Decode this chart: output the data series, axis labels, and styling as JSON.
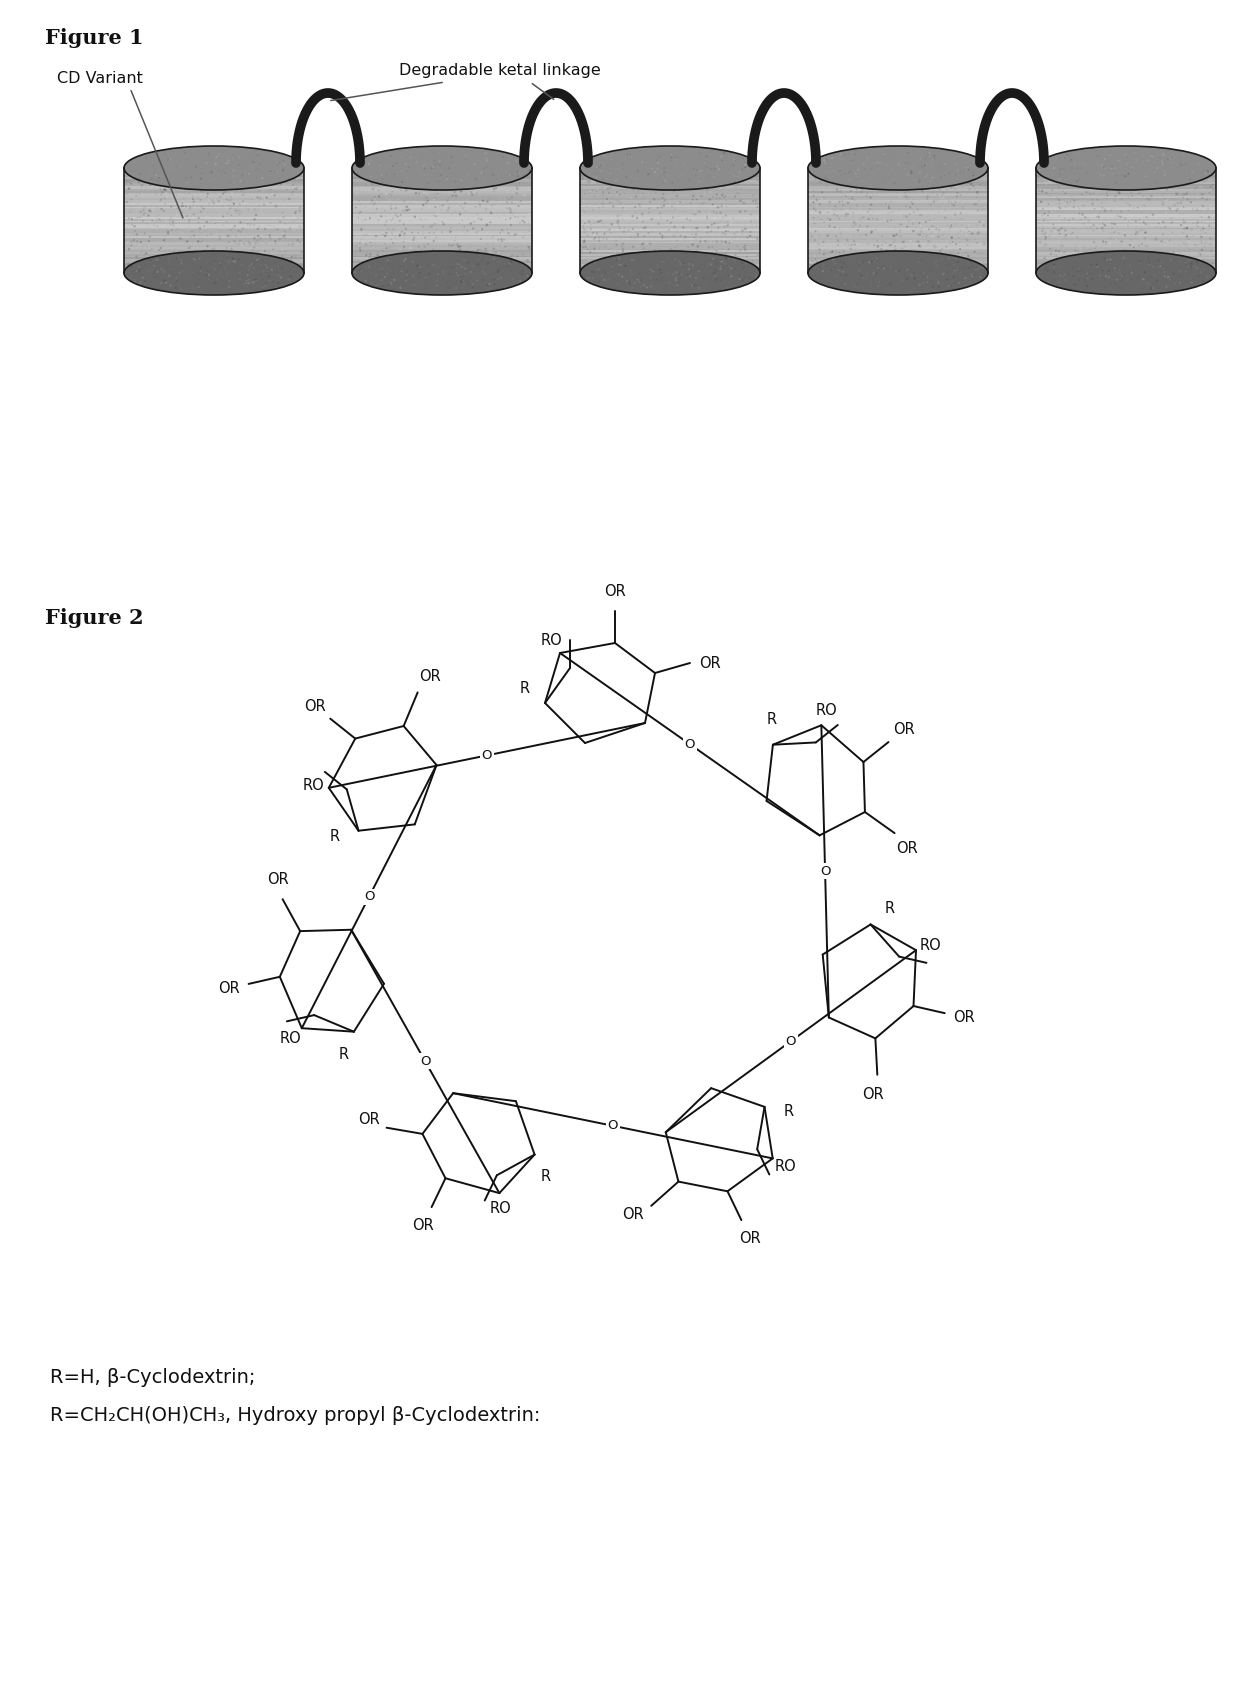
{
  "fig1_title": "Figure 1",
  "fig2_title": "Figure 2",
  "fig1_label_cd": "CD Variant",
  "fig1_label_ketal": "Degradable ketal linkage",
  "fig2_caption_line1": "R=H, β-Cyclodextrin;",
  "fig2_caption_line2": "R=CH₂CH(OH)CH₃, Hydroxy propyl β-Cyclodextrin:",
  "background_color": "#ffffff",
  "figure_label_fontsize": 15,
  "caption_fontsize": 14,
  "text_color": "#111111",
  "drum_body_color": "#b8b8b8",
  "drum_shadow_color": "#888888",
  "drum_top_color": "#999999",
  "drum_bottom_color": "#707070",
  "arch_color": "#2a2a2a",
  "line_color": "#333333"
}
